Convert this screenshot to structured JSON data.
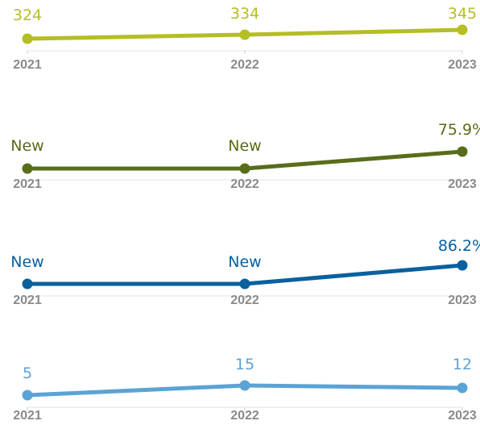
{
  "chart_data": [
    {
      "type": "line",
      "categories": [
        "2021",
        "2022",
        "2023"
      ],
      "labels": [
        "324",
        "334",
        "345"
      ],
      "values": [
        324,
        334,
        345
      ],
      "color": "#b5be23"
    },
    {
      "type": "line",
      "categories": [
        "2021",
        "2022",
        "2023"
      ],
      "labels": [
        "New",
        "New",
        "75.9%"
      ],
      "values": [
        null,
        null,
        75.9
      ],
      "color": "#586d1a"
    },
    {
      "type": "line",
      "categories": [
        "2021",
        "2022",
        "2023"
      ],
      "labels": [
        "New",
        "New",
        "86.2%"
      ],
      "values": [
        null,
        null,
        86.2
      ],
      "color": "#0a609e"
    },
    {
      "type": "line",
      "categories": [
        "2021",
        "2022",
        "2023"
      ],
      "labels": [
        "5",
        "15",
        "12"
      ],
      "values": [
        5,
        15,
        12
      ],
      "color": "#5ba3d4"
    }
  ]
}
